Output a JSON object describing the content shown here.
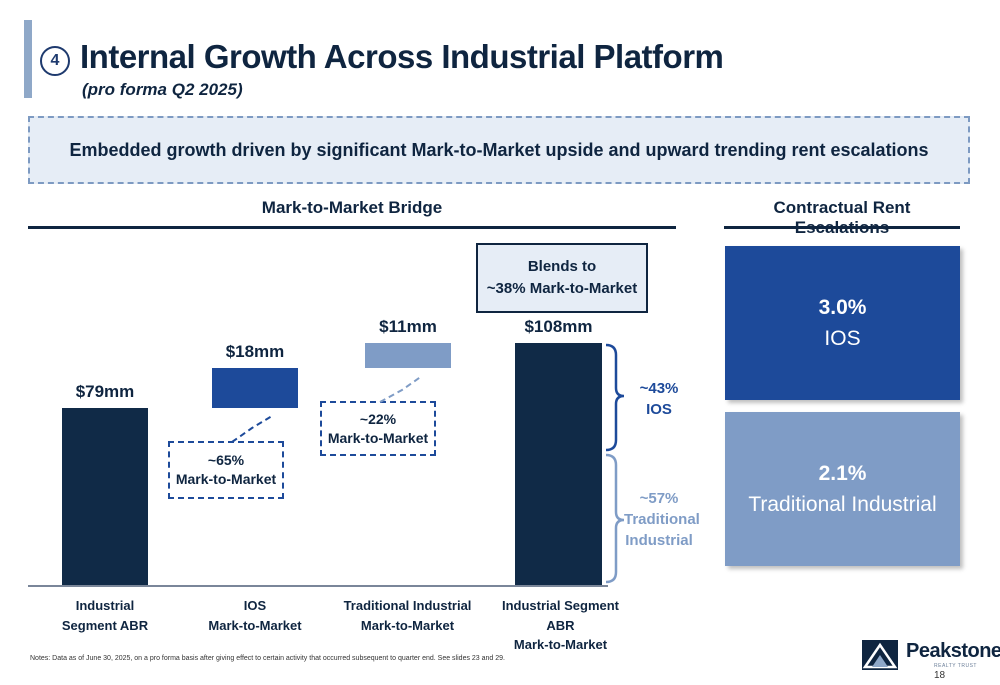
{
  "header": {
    "step_number": "4",
    "title": "Internal Growth Across Industrial Platform",
    "subtitle": "(pro forma Q2 2025)"
  },
  "banner": {
    "text": "Embedded growth driven by significant Mark-to-Market upside and upward trending rent escalations"
  },
  "bridge": {
    "heading": "Mark-to-Market Bridge",
    "value_labels": [
      "$79mm",
      "$18mm",
      "$11mm",
      "$108mm"
    ],
    "categories": [
      {
        "line1": "Industrial",
        "line2": "Segment ABR"
      },
      {
        "line1": "IOS",
        "line2": "Mark-to-Market"
      },
      {
        "line1": "Traditional Industrial",
        "line2": "Mark-to-Market"
      },
      {
        "line1": "Industrial Segment ABR",
        "line2": "Mark-to-Market"
      }
    ],
    "callout_ios": {
      "line1": "~65%",
      "line2": "Mark-to-Market"
    },
    "callout_trad": {
      "line1": "~22%",
      "line2": "Mark-to-Market"
    },
    "blend": {
      "line1": "Blends to",
      "line2": "~38% Mark-to-Market"
    },
    "split_ios": {
      "line1": "~43%",
      "line2": "IOS"
    },
    "split_trad": {
      "line1": "~57%",
      "line2": "Traditional",
      "line3": "Industrial"
    }
  },
  "chart_data": {
    "type": "bar",
    "subtype": "waterfall",
    "title": "Mark-to-Market Bridge",
    "categories": [
      "Industrial Segment ABR",
      "IOS Mark-to-Market",
      "Traditional Industrial Mark-to-Market",
      "Industrial Segment ABR Mark-to-Market"
    ],
    "values": [
      79,
      18,
      11,
      108
    ],
    "bar_starts": [
      0,
      79,
      97,
      0
    ],
    "units": "mm",
    "series_colors": [
      "#102a47",
      "#1d4a9a",
      "#7f9cc6",
      "#102a47"
    ]
  },
  "escalations": {
    "heading": "Contractual Rent Escalations",
    "ios": {
      "pct": "3.0%",
      "name": "IOS",
      "color": "#1d4a9a"
    },
    "traditional": {
      "pct": "2.1%",
      "name": "Traditional Industrial",
      "color": "#7f9cc6"
    }
  },
  "footer": {
    "notes": "Notes: Data as of June 30, 2025, on a pro forma basis after giving effect to certain activity that occurred subsequent to quarter end. See slides 23 and 29.",
    "logo_name": "Peakstone",
    "logo_tagline": "REALTY TRUST",
    "page_number": "18"
  }
}
